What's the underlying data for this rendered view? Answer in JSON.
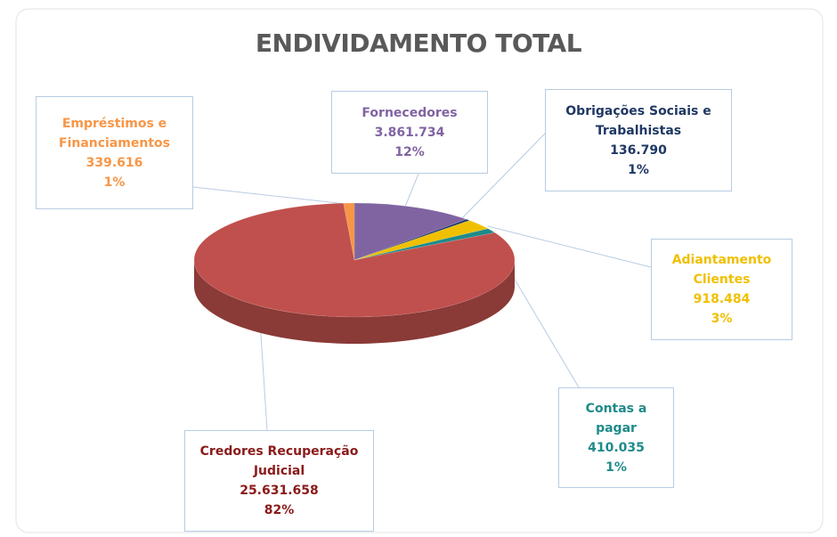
{
  "chart_data": {
    "type": "pie",
    "title": "ENDIVIDAMENTO TOTAL",
    "categories": [
      "Fornecedores",
      "Obrigações Sociais e Trabalhistas",
      "Adiantamento Clientes",
      "Contas a pagar",
      "Credores Recuperação Judicial",
      "Empréstimos e Financiamentos"
    ],
    "values": [
      3861734,
      136790,
      918484,
      410035,
      25631658,
      339616
    ],
    "value_labels": [
      "3.861.734",
      "136.790",
      "918.484",
      "410.035",
      "25.631.658",
      "339.616"
    ],
    "percentages": [
      {
        "value": 12,
        "label": "12%"
      },
      {
        "value": 1,
        "label": "1%"
      },
      {
        "value": 3,
        "label": "3%"
      },
      {
        "value": 1,
        "label": "1%"
      },
      {
        "value": 82,
        "label": "82%"
      },
      {
        "value": 1,
        "label": "1%"
      }
    ],
    "colors": [
      "#8064a2",
      "#1f3864",
      "#f0c000",
      "#1f8a8a",
      "#c0504d",
      "#f79646"
    ]
  }
}
